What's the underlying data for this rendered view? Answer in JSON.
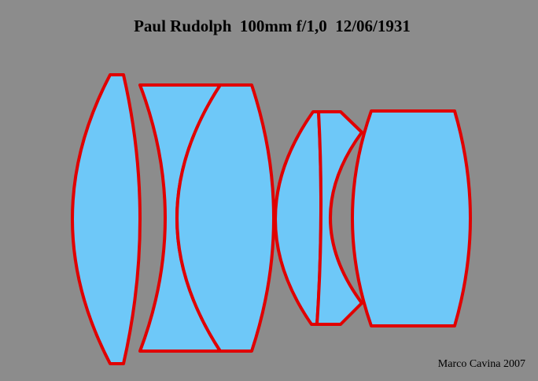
{
  "header": {
    "title": "Paul Rudolph  100mm f/1,0  12/06/1931"
  },
  "credit": "Marco Cavina 2007"
}
